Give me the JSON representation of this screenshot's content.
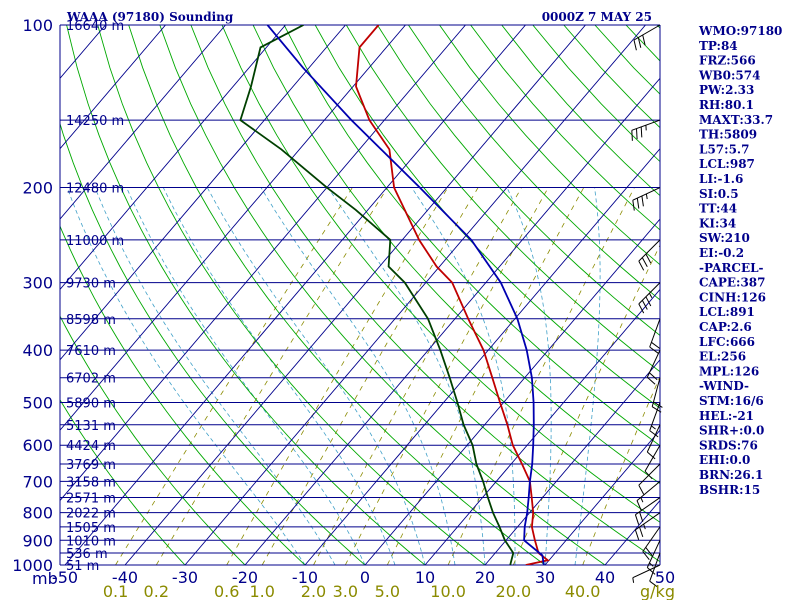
{
  "header": {
    "title": "WAAA (97180) Sounding",
    "valid_time": "0000Z  7 MAY 25"
  },
  "indices": [
    "WMO:97180",
    "TP:84",
    "FRZ:566",
    "WB0:574",
    "PW:2.33",
    "RH:80.1",
    "MAXT:33.7",
    "TH:5809",
    "L57:5.7",
    "LCL:987",
    "LI:-1.6",
    "SI:0.5",
    "TT:44",
    "KI:34",
    "SW:210",
    "EI:-0.2",
    "-PARCEL-",
    "CAPE:387",
    "CINH:126",
    "LCL:891",
    "CAP:2.6",
    "LFC:666",
    "EL:256",
    "MPL:126",
    "-WIND-",
    "STM:16/6",
    "HEL:-21",
    "SHR+:0.0",
    "SRDS:76",
    "EHI:0.0",
    "BRN:26.1",
    "BSHR:15"
  ],
  "chart_data": {
    "type": "skew-t log-p sounding",
    "pressure_axis": {
      "unit": "mb",
      "scale": "log",
      "range": [
        1000,
        100
      ],
      "ticks": [
        100,
        200,
        300,
        400,
        500,
        600,
        700,
        800,
        900,
        1000
      ]
    },
    "temperature_axis": {
      "unit": "C",
      "range": [
        -50,
        50
      ],
      "ticks": [
        -50,
        -40,
        -30,
        -20,
        -10,
        0,
        10,
        20,
        30,
        40,
        50
      ]
    },
    "mixing_ratio_axis": {
      "unit": "g/kg",
      "ticks": [
        "0.1",
        "0.2",
        "0.6",
        "1.0",
        "2.0",
        "3.0",
        "5.0",
        "10.0",
        "20.0",
        "40.0"
      ]
    },
    "height_labels": [
      {
        "p": 1000,
        "label": "51 m"
      },
      {
        "p": 950,
        "label": "536 m"
      },
      {
        "p": 900,
        "label": "1010 m"
      },
      {
        "p": 850,
        "label": "1505 m"
      },
      {
        "p": 800,
        "label": "2022 m"
      },
      {
        "p": 750,
        "label": "2571 m"
      },
      {
        "p": 700,
        "label": "3158 m"
      },
      {
        "p": 650,
        "label": "3769 m"
      },
      {
        "p": 600,
        "label": "4424 m"
      },
      {
        "p": 550,
        "label": "5131 m"
      },
      {
        "p": 500,
        "label": "5890 m"
      },
      {
        "p": 450,
        "label": "6702 m"
      },
      {
        "p": 400,
        "label": "7610 m"
      },
      {
        "p": 350,
        "label": "8598 m"
      },
      {
        "p": 300,
        "label": "9730 m"
      },
      {
        "p": 250,
        "label": "11000 m"
      },
      {
        "p": 200,
        "label": "12480 m"
      },
      {
        "p": 150,
        "label": "14250 m"
      },
      {
        "p": 100,
        "label": "16640 m"
      }
    ],
    "series": [
      {
        "name": "Temperature",
        "color": "#c00000",
        "points": [
          {
            "p": 1000,
            "t": 26.8
          },
          {
            "p": 980,
            "t": 29.8
          },
          {
            "p": 950,
            "t": 27.2
          },
          {
            "p": 900,
            "t": 24.8
          },
          {
            "p": 850,
            "t": 22.4
          },
          {
            "p": 800,
            "t": 20.6
          },
          {
            "p": 750,
            "t": 18.2
          },
          {
            "p": 700,
            "t": 15.6
          },
          {
            "p": 650,
            "t": 11.8
          },
          {
            "p": 600,
            "t": 7.6
          },
          {
            "p": 550,
            "t": 3.8
          },
          {
            "p": 500,
            "t": -0.6
          },
          {
            "p": 450,
            "t": -5.4
          },
          {
            "p": 400,
            "t": -10.8
          },
          {
            "p": 350,
            "t": -17.8
          },
          {
            "p": 300,
            "t": -25.6
          },
          {
            "p": 280,
            "t": -30.5
          },
          {
            "p": 250,
            "t": -37.2
          },
          {
            "p": 200,
            "t": -48.8
          },
          {
            "p": 170,
            "t": -55.0
          },
          {
            "p": 150,
            "t": -62.5
          },
          {
            "p": 130,
            "t": -69.5
          },
          {
            "p": 110,
            "t": -74.5
          },
          {
            "p": 100,
            "t": -74.5
          }
        ]
      },
      {
        "name": "Dewpoint",
        "color": "#004000",
        "points": [
          {
            "p": 1000,
            "t": 24.2
          },
          {
            "p": 950,
            "t": 23.0
          },
          {
            "p": 900,
            "t": 19.8
          },
          {
            "p": 850,
            "t": 17.0
          },
          {
            "p": 800,
            "t": 13.9
          },
          {
            "p": 750,
            "t": 10.9
          },
          {
            "p": 700,
            "t": 7.8
          },
          {
            "p": 650,
            "t": 4.2
          },
          {
            "p": 600,
            "t": 0.9
          },
          {
            "p": 550,
            "t": -3.5
          },
          {
            "p": 500,
            "t": -7.7
          },
          {
            "p": 450,
            "t": -12.5
          },
          {
            "p": 400,
            "t": -18.0
          },
          {
            "p": 350,
            "t": -24.5
          },
          {
            "p": 300,
            "t": -33.5
          },
          {
            "p": 280,
            "t": -38.5
          },
          {
            "p": 250,
            "t": -42.0
          },
          {
            "p": 220,
            "t": -52.0
          },
          {
            "p": 200,
            "t": -60.0
          },
          {
            "p": 170,
            "t": -73.0
          },
          {
            "p": 150,
            "t": -84.0
          },
          {
            "p": 130,
            "t": -87.0
          },
          {
            "p": 110,
            "t": -91.0
          },
          {
            "p": 100,
            "t": -87.0
          }
        ]
      },
      {
        "name": "Parcel",
        "color": "#0000b0",
        "points": [
          {
            "p": 1000,
            "t": 29.8
          },
          {
            "p": 960,
            "t": 28.2
          },
          {
            "p": 900,
            "t": 23.0
          },
          {
            "p": 850,
            "t": 21.2
          },
          {
            "p": 800,
            "t": 19.6
          },
          {
            "p": 750,
            "t": 17.7
          },
          {
            "p": 700,
            "t": 15.6
          },
          {
            "p": 650,
            "t": 13.5
          },
          {
            "p": 600,
            "t": 11.0
          },
          {
            "p": 550,
            "t": 8.2
          },
          {
            "p": 500,
            "t": 5.0
          },
          {
            "p": 450,
            "t": 1.2
          },
          {
            "p": 400,
            "t": -3.6
          },
          {
            "p": 350,
            "t": -9.6
          },
          {
            "p": 300,
            "t": -17.5
          },
          {
            "p": 250,
            "t": -28.5
          },
          {
            "p": 200,
            "t": -44.5
          },
          {
            "p": 150,
            "t": -65.5
          },
          {
            "p": 120,
            "t": -81.0
          },
          {
            "p": 100,
            "t": -93.0
          }
        ]
      }
    ],
    "winds": [
      {
        "p": 1000,
        "dir": 245,
        "spd": 5
      },
      {
        "p": 950,
        "dir": 200,
        "spd": 10
      },
      {
        "p": 900,
        "dir": 205,
        "spd": 15
      },
      {
        "p": 850,
        "dir": 215,
        "spd": 20
      },
      {
        "p": 800,
        "dir": 235,
        "spd": 25
      },
      {
        "p": 750,
        "dir": 235,
        "spd": 20
      },
      {
        "p": 700,
        "dir": 230,
        "spd": 15
      },
      {
        "p": 650,
        "dir": 225,
        "spd": 10
      },
      {
        "p": 600,
        "dir": 210,
        "spd": 10
      },
      {
        "p": 550,
        "dir": 205,
        "spd": 10
      },
      {
        "p": 500,
        "dir": 200,
        "spd": 15
      },
      {
        "p": 450,
        "dir": 195,
        "spd": 20
      },
      {
        "p": 400,
        "dir": 205,
        "spd": 20
      },
      {
        "p": 350,
        "dir": 200,
        "spd": 20
      },
      {
        "p": 300,
        "dir": 225,
        "spd": 35
      },
      {
        "p": 250,
        "dir": 225,
        "spd": 30
      },
      {
        "p": 200,
        "dir": 245,
        "spd": 35
      },
      {
        "p": 150,
        "dir": 250,
        "spd": 35
      },
      {
        "p": 100,
        "dir": 240,
        "spd": 30
      }
    ],
    "colors": {
      "isobar": "#00008b",
      "isotherm": "#00008b",
      "dry_adiabat": "#00a800",
      "moist_adiabat": "#40a0c8",
      "mixing_ratio": "#8b8b00"
    }
  }
}
